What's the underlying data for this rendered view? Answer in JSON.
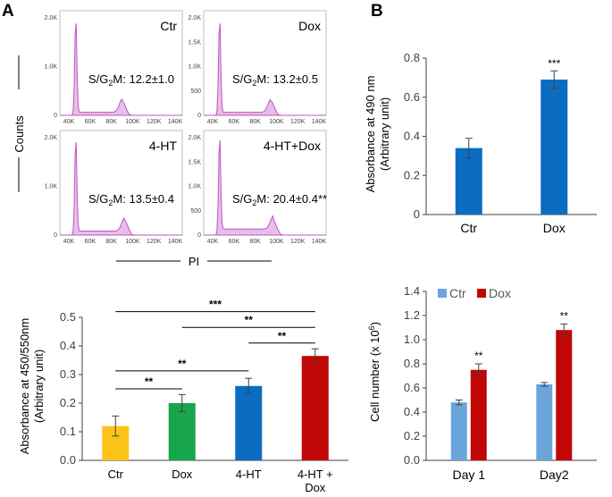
{
  "panels": {
    "a": "A",
    "b": "B"
  },
  "flow": {
    "y_label": "Counts",
    "x_label": "PI",
    "y_ticks": [
      "0",
      "1.0K",
      "2.0K"
    ],
    "x_ticks": [
      "40K",
      "60K",
      "80K",
      "100K",
      "120K",
      "140K"
    ],
    "top_y_ticks": [
      "0",
      "1.0K",
      "2.0K"
    ],
    "right_y_ticks": [
      "0",
      "500",
      "1.0K",
      "1.5K",
      "2.0K"
    ],
    "hist_color": "#c154c1",
    "hist_fill": "#e6bfe8",
    "plots": [
      {
        "label": "Ctr",
        "stat_prefix": "S/G",
        "stat_sub": "2",
        "stat_suffix": "M:",
        "stat_value": "12.2±1.0"
      },
      {
        "label": "Dox",
        "stat_prefix": "S/G",
        "stat_sub": "2",
        "stat_suffix": "M:",
        "stat_value": "13.2±0.5"
      },
      {
        "label": "4-HT",
        "stat_prefix": "S/G",
        "stat_sub": "2",
        "stat_suffix": "M:",
        "stat_value": "13.5±0.4"
      },
      {
        "label": "4-HT+Dox",
        "stat_prefix": "S/G",
        "stat_sub": "2",
        "stat_suffix": "M:",
        "stat_value": "20.4±0.4**"
      }
    ]
  },
  "chart_data": [
    {
      "id": "abs490",
      "type": "bar",
      "ylabel_line1": "Absorbance at 490 nm",
      "ylabel_line2": "(Arbitrary unit)",
      "ylim": [
        0,
        0.8
      ],
      "yticks": [
        "0",
        "0.2",
        "0.4",
        "0.6",
        "0.8"
      ],
      "categories": [
        "Ctr",
        "Dox"
      ],
      "values": [
        0.34,
        0.69
      ],
      "errors": [
        0.05,
        0.045
      ],
      "colors": [
        "#0a6dc2",
        "#0a6dc2"
      ],
      "significance": [
        "",
        "***"
      ]
    },
    {
      "id": "abs450",
      "type": "bar",
      "ylabel_line1": "Absorbance at 450/550nm",
      "ylabel_line2": "(Arbitrary unit)",
      "ylim": [
        0,
        0.5
      ],
      "yticks": [
        "0.0",
        "0.1",
        "0.2",
        "0.3",
        "0.4",
        "0.5"
      ],
      "categories": [
        "Ctr",
        "Dox",
        "4-HT",
        "4-HT +"
      ],
      "category_sublabels": [
        "",
        "",
        "",
        "Dox"
      ],
      "values": [
        0.12,
        0.2,
        0.26,
        0.365
      ],
      "errors": [
        0.035,
        0.03,
        0.027,
        0.025
      ],
      "colors": [
        "#fbc31a",
        "#17a64b",
        "#0a6dc2",
        "#c10606"
      ],
      "brackets": [
        {
          "from": 0,
          "to": 1,
          "label": "**",
          "y": 0.25
        },
        {
          "from": 0,
          "to": 2,
          "label": "**",
          "y": 0.313
        },
        {
          "from": 2,
          "to": 3,
          "label": "**",
          "y": 0.41
        },
        {
          "from": 1,
          "to": 3,
          "label": "**",
          "y": 0.465
        },
        {
          "from": 0,
          "to": 3,
          "label": "***",
          "y": 0.52
        }
      ]
    },
    {
      "id": "cellnum",
      "type": "bar",
      "ylabel_main": "Cell number (x 10",
      "ylabel_sup": "6",
      "ylabel_end": ")",
      "ylim": [
        0,
        1.4
      ],
      "yticks": [
        "0.0",
        "0.2",
        "0.4",
        "0.6",
        "0.8",
        "1.0",
        "1.2",
        "1.4"
      ],
      "categories": [
        "Day 1",
        "Day2"
      ],
      "series": [
        {
          "name": "Ctr",
          "color": "#6aa5dc",
          "values": [
            0.48,
            0.63
          ],
          "errors": [
            0.02,
            0.015
          ],
          "significance": [
            "",
            ""
          ]
        },
        {
          "name": "Dox",
          "color": "#c10606",
          "values": [
            0.75,
            1.08
          ],
          "errors": [
            0.05,
            0.05
          ],
          "significance": [
            "**",
            "**"
          ]
        }
      ],
      "legend": "top-left"
    }
  ]
}
